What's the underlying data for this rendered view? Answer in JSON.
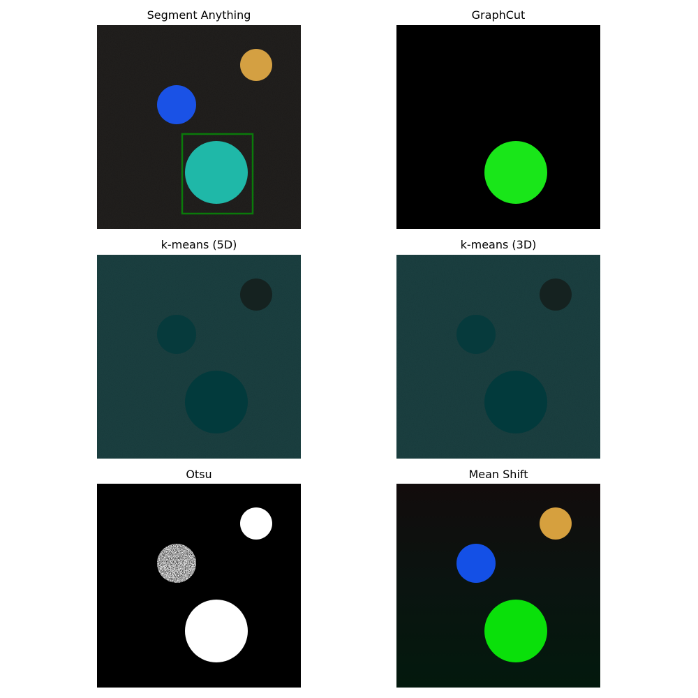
{
  "panels": [
    {
      "title": "Segment Anything",
      "background": "#0f0d0b",
      "bg_style": "noise",
      "circles": [
        {
          "id": "orange",
          "color": "#d4a042"
        },
        {
          "id": "blue",
          "color": "#1a52e6"
        },
        {
          "id": "large",
          "color": "#1fb8a8"
        }
      ],
      "has_box_prompt": true,
      "box_color": "#0a7a0a"
    },
    {
      "title": "GraphCut",
      "background": "#000000",
      "bg_style": "flat",
      "circles": [
        {
          "id": "large",
          "color": "#19e619"
        }
      ]
    },
    {
      "title": "k-means (5D)",
      "background": "#093031",
      "bg_style": "noise",
      "circles": [
        {
          "id": "orange",
          "color": "#152220"
        },
        {
          "id": "blue",
          "color": "#063a3c"
        },
        {
          "id": "large",
          "color": "#023a3c"
        }
      ]
    },
    {
      "title": "k-means (3D)",
      "background": "#093031",
      "bg_style": "noise",
      "circles": [
        {
          "id": "orange",
          "color": "#152220"
        },
        {
          "id": "blue",
          "color": "#063a3c"
        },
        {
          "id": "large",
          "color": "#023a3c"
        }
      ]
    },
    {
      "title": "Otsu",
      "background": "#000000",
      "bg_style": "flat",
      "circles": [
        {
          "id": "orange",
          "color": "#ffffff"
        },
        {
          "id": "blue",
          "color": "#bdbdbd",
          "speckled": true
        },
        {
          "id": "large",
          "color": "#ffffff"
        }
      ]
    },
    {
      "title": "Mean Shift",
      "background": "#0d1a12",
      "bg_style": "gradient",
      "circles": [
        {
          "id": "orange",
          "color": "#d6a03e"
        },
        {
          "id": "blue",
          "color": "#1450e6"
        },
        {
          "id": "large",
          "color": "#0ae00a"
        }
      ]
    }
  ]
}
